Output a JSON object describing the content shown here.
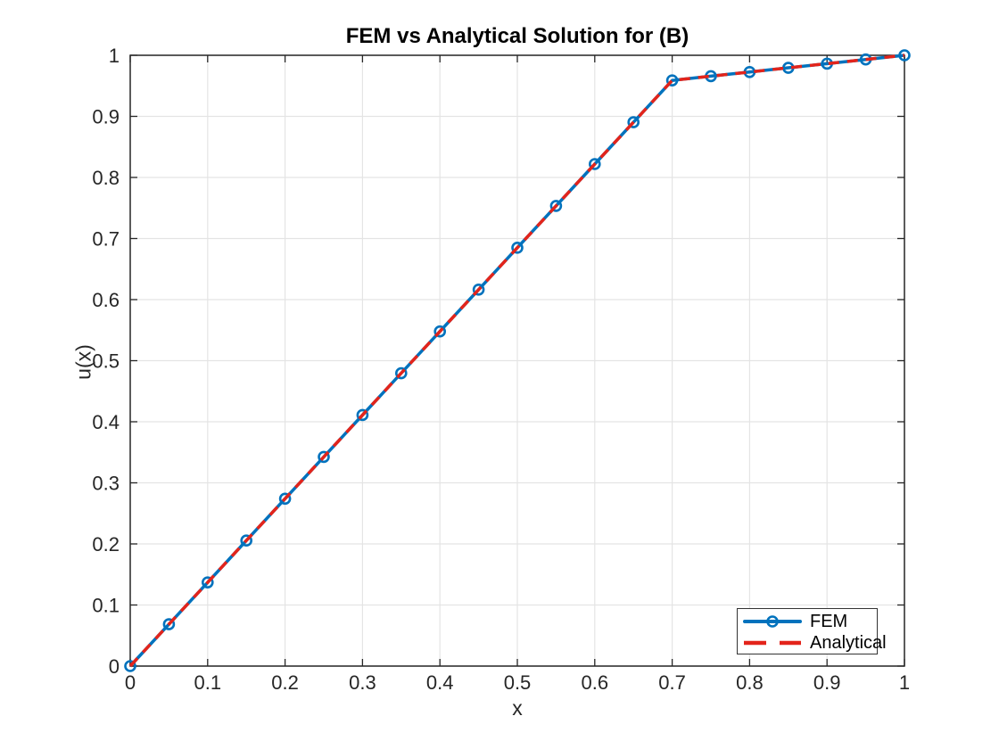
{
  "chart_data": {
    "type": "line",
    "title": "FEM vs Analytical Solution for (B)",
    "xlabel": "x",
    "ylabel": "u(x)",
    "xlim": [
      0,
      1
    ],
    "ylim": [
      0,
      1
    ],
    "grid": true,
    "box": true,
    "legend_position": "southeast",
    "x_ticks": [
      0,
      0.1,
      0.2,
      0.3,
      0.4,
      0.5,
      0.6,
      0.7,
      0.8,
      0.9,
      1
    ],
    "x_tick_labels": [
      "0",
      "0.1",
      "0.2",
      "0.3",
      "0.4",
      "0.5",
      "0.6",
      "0.7",
      "0.8",
      "0.9",
      "1"
    ],
    "y_ticks": [
      0,
      0.1,
      0.2,
      0.3,
      0.4,
      0.5,
      0.6,
      0.7,
      0.8,
      0.9,
      1
    ],
    "y_tick_labels": [
      "0",
      "0.1",
      "0.2",
      "0.3",
      "0.4",
      "0.5",
      "0.6",
      "0.7",
      "0.8",
      "0.9",
      "1"
    ],
    "x": [
      0,
      0.05,
      0.1,
      0.15,
      0.2,
      0.25,
      0.3,
      0.35,
      0.4,
      0.45,
      0.5,
      0.55,
      0.6,
      0.65,
      0.7,
      0.75,
      0.8,
      0.85,
      0.9,
      0.95,
      1
    ],
    "series": [
      {
        "name": "FEM",
        "color": "#0072BD",
        "style": "solid",
        "marker": "circle",
        "values": [
          0,
          0.0685,
          0.137,
          0.2055,
          0.274,
          0.3425,
          0.411,
          0.4795,
          0.5479,
          0.6164,
          0.6849,
          0.7534,
          0.8219,
          0.8904,
          0.9589,
          0.9658,
          0.9726,
          0.9795,
          0.9863,
          0.9932,
          1
        ]
      },
      {
        "name": "Analytical",
        "color": "#E3241B",
        "style": "dashed",
        "marker": "none",
        "values": [
          0,
          0.0685,
          0.137,
          0.2055,
          0.274,
          0.3425,
          0.411,
          0.4795,
          0.5479,
          0.6164,
          0.6849,
          0.7534,
          0.8219,
          0.8904,
          0.9589,
          0.9658,
          0.9726,
          0.9795,
          0.9863,
          0.9932,
          1
        ]
      }
    ],
    "colors": {
      "grid": "#E4E4E4",
      "axis": "#262626",
      "tick_text": "#262626",
      "background": "#FFFFFF"
    }
  }
}
